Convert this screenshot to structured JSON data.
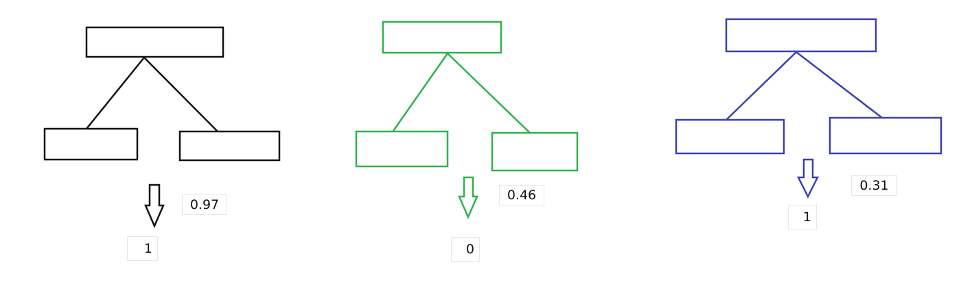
{
  "trees": [
    {
      "id": "tree-black",
      "color": "#111111",
      "score": "0.97",
      "output": "1"
    },
    {
      "id": "tree-green",
      "color": "#2fb14a",
      "score": "0.46",
      "output": "0"
    },
    {
      "id": "tree-blue",
      "color": "#3a3fb0",
      "score": "0.31",
      "output": "1"
    }
  ]
}
